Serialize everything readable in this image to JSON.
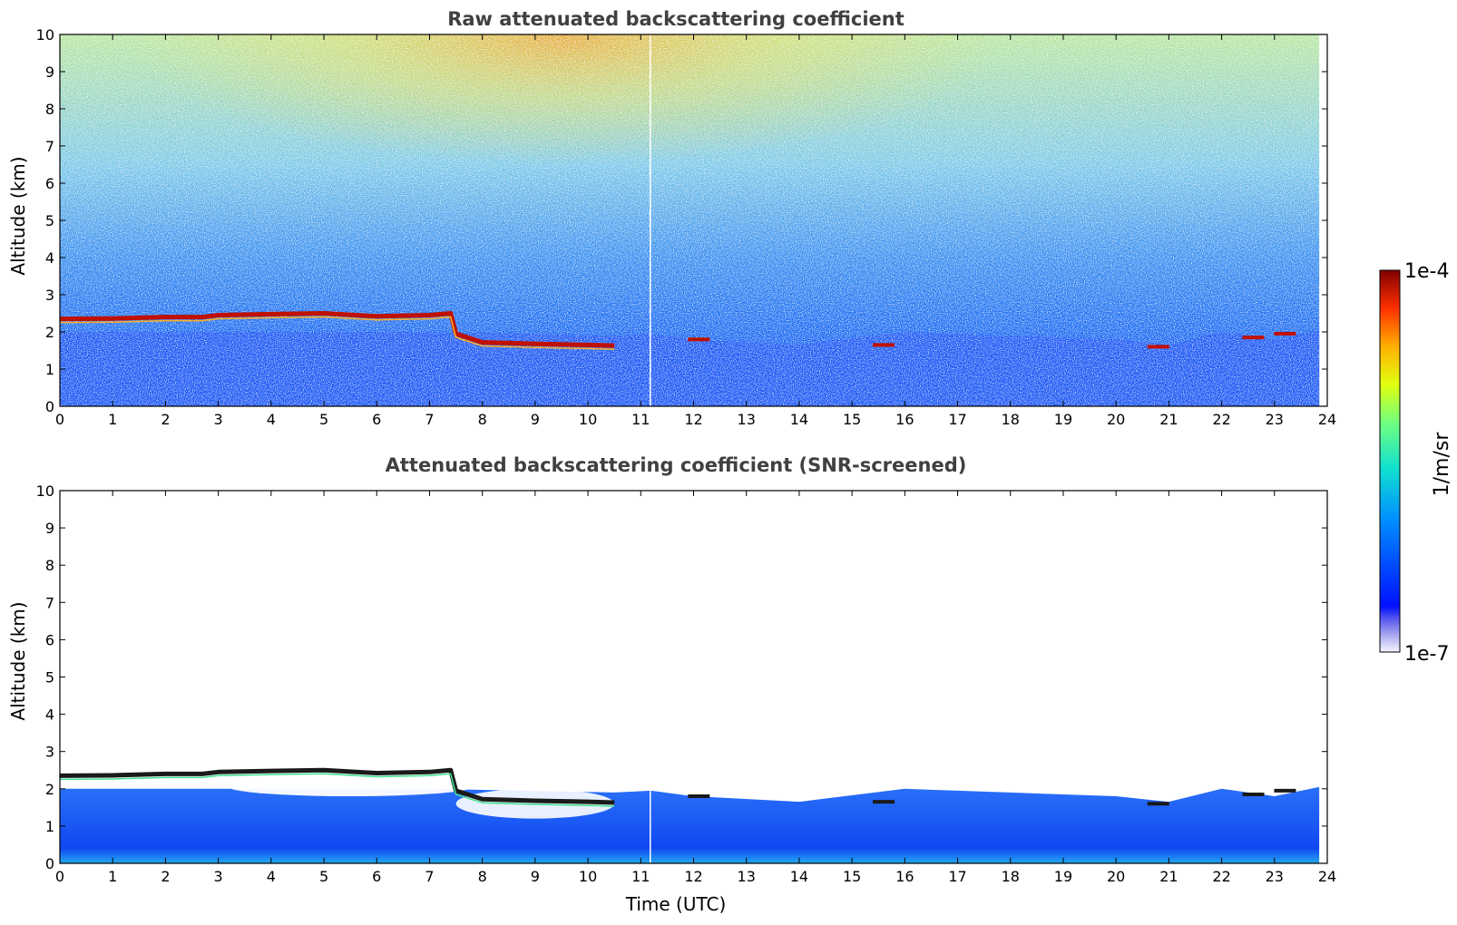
{
  "figure": {
    "colorbar": {
      "label": "1/m/sr",
      "max_label": "1e-4",
      "min_label": "1e-7",
      "scale": "log",
      "colormap": "jet",
      "range": [
        1e-07,
        0.0001
      ]
    }
  },
  "chart_data": [
    {
      "type": "heatmap",
      "title": "Raw attenuated backscattering coefficient",
      "xlabel": "",
      "ylabel": "Altitude (km)",
      "xlim": [
        0,
        24
      ],
      "ylim": [
        0,
        10
      ],
      "x_ticks": [
        "0",
        "1",
        "2",
        "3",
        "4",
        "5",
        "6",
        "7",
        "8",
        "9",
        "10",
        "11",
        "12",
        "13",
        "14",
        "15",
        "16",
        "17",
        "18",
        "19",
        "20",
        "21",
        "22",
        "23",
        "24"
      ],
      "y_ticks": [
        "0",
        "1",
        "2",
        "3",
        "4",
        "5",
        "6",
        "7",
        "8",
        "9",
        "10"
      ],
      "data_end_time": 23.85,
      "data_gap_time": 11.18,
      "screened": false,
      "cloud_layer": {
        "time": [
          0,
          1,
          2,
          2.7,
          3,
          4,
          5,
          6,
          7,
          7.4,
          7.5,
          8,
          9,
          10,
          10.5
        ],
        "height_km": [
          2.35,
          2.36,
          2.4,
          2.4,
          2.45,
          2.48,
          2.5,
          2.42,
          2.45,
          2.5,
          1.95,
          1.72,
          1.68,
          1.65,
          1.63
        ]
      },
      "boundary_layer_top_km": {
        "time": [
          0,
          3,
          7,
          10.5,
          11.2,
          12,
          14,
          16,
          18,
          20,
          21,
          22,
          23,
          23.85
        ],
        "height_km": [
          2.0,
          2.0,
          2.0,
          1.9,
          1.95,
          1.8,
          1.65,
          2.0,
          1.9,
          1.8,
          1.65,
          2.0,
          1.8,
          2.05
        ]
      },
      "low_clouds": {
        "time": [
          12.1,
          15.6,
          20.8,
          22.6,
          23.2
        ],
        "height_km": [
          1.8,
          1.65,
          1.6,
          1.85,
          1.95
        ]
      }
    },
    {
      "type": "heatmap",
      "title": "Attenuated backscattering coefficient (SNR-screened)",
      "xlabel": "Time (UTC)",
      "ylabel": "Altitude (km)",
      "xlim": [
        0,
        24
      ],
      "ylim": [
        0,
        10
      ],
      "x_ticks": [
        "0",
        "1",
        "2",
        "3",
        "4",
        "5",
        "6",
        "7",
        "8",
        "9",
        "10",
        "11",
        "12",
        "13",
        "14",
        "15",
        "16",
        "17",
        "18",
        "19",
        "20",
        "21",
        "22",
        "23",
        "24"
      ],
      "y_ticks": [
        "0",
        "1",
        "2",
        "3",
        "4",
        "5",
        "6",
        "7",
        "8",
        "9",
        "10"
      ],
      "data_end_time": 23.85,
      "data_gap_time": 11.18,
      "screened": true,
      "cloud_layer": {
        "time": [
          0,
          1,
          2,
          2.7,
          3,
          4,
          5,
          6,
          7,
          7.4,
          7.5,
          8,
          9,
          10,
          10.5
        ],
        "height_km": [
          2.35,
          2.36,
          2.4,
          2.4,
          2.45,
          2.48,
          2.5,
          2.42,
          2.45,
          2.5,
          1.95,
          1.72,
          1.68,
          1.65,
          1.63
        ]
      },
      "boundary_layer_top_km": {
        "time": [
          0,
          3,
          7,
          10.5,
          11.2,
          12,
          14,
          16,
          18,
          20,
          21,
          22,
          23,
          23.85
        ],
        "height_km": [
          2.0,
          2.0,
          2.0,
          1.9,
          1.95,
          1.8,
          1.65,
          2.0,
          1.9,
          1.8,
          1.65,
          2.0,
          1.8,
          2.05
        ]
      },
      "low_clouds": {
        "time": [
          12.1,
          15.6,
          20.8,
          22.6,
          23.2
        ],
        "height_km": [
          1.8,
          1.65,
          1.6,
          1.85,
          1.95
        ]
      }
    }
  ]
}
